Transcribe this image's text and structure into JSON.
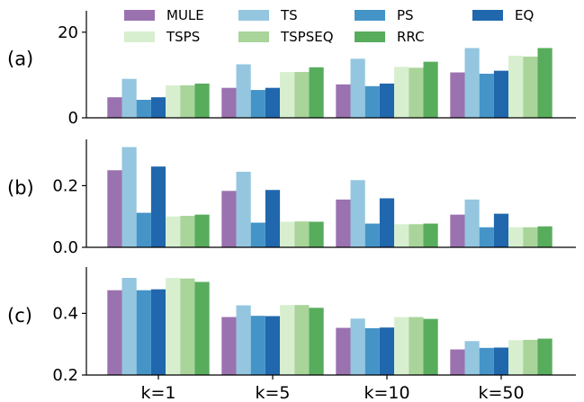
{
  "chart_data": {
    "type": "bar",
    "layout": "three vertically stacked panels sharing x categories",
    "categories": [
      "k=1",
      "k=5",
      "k=10",
      "k=50"
    ],
    "legend": {
      "placement": "top",
      "columns": 4,
      "entries": [
        "MULE",
        "TS",
        "PS",
        "EQ",
        "TSPS",
        "TSPSEQ",
        "RRC"
      ]
    },
    "colors": {
      "MULE": "#9b72b0",
      "TS": "#94c6e0",
      "PS": "#4594c8",
      "EQ": "#2167ad",
      "TSPS": "#d7efcf",
      "TSPSEQ": "#a9d49a",
      "RRC": "#58ad5d"
    },
    "series_order": [
      "MULE",
      "TS",
      "PS",
      "EQ",
      "TSPS",
      "TSPSEQ",
      "RRC"
    ],
    "panels": [
      {
        "label": "(a)",
        "ylim": [
          0,
          25
        ],
        "yticks": [
          0,
          20
        ],
        "ytick_labels": [
          "0",
          "20"
        ],
        "series": [
          {
            "name": "MULE",
            "values": [
              4.8,
              7.0,
              7.8,
              10.6
            ]
          },
          {
            "name": "TS",
            "values": [
              9.1,
              12.5,
              13.8,
              16.3
            ]
          },
          {
            "name": "PS",
            "values": [
              4.2,
              6.5,
              7.4,
              10.3
            ]
          },
          {
            "name": "EQ",
            "values": [
              4.8,
              7.0,
              8.0,
              11.0
            ]
          },
          {
            "name": "TSPS",
            "values": [
              7.6,
              10.7,
              11.9,
              14.5
            ]
          },
          {
            "name": "TSPSEQ",
            "values": [
              7.6,
              10.7,
              11.7,
              14.3
            ]
          },
          {
            "name": "RRC",
            "values": [
              8.0,
              11.8,
              13.1,
              16.3
            ]
          }
        ]
      },
      {
        "label": "(b)",
        "ylim": [
          0,
          0.35
        ],
        "yticks": [
          0.0,
          0.2
        ],
        "ytick_labels": [
          "0.0",
          "0.2"
        ],
        "series": [
          {
            "name": "MULE",
            "values": [
              0.25,
              0.183,
              0.155,
              0.106
            ]
          },
          {
            "name": "TS",
            "values": [
              0.325,
              0.245,
              0.218,
              0.155
            ]
          },
          {
            "name": "PS",
            "values": [
              0.112,
              0.08,
              0.077,
              0.065
            ]
          },
          {
            "name": "EQ",
            "values": [
              0.262,
              0.186,
              0.159,
              0.109
            ]
          },
          {
            "name": "TSPS",
            "values": [
              0.1,
              0.083,
              0.075,
              0.065
            ]
          },
          {
            "name": "TSPSEQ",
            "values": [
              0.102,
              0.084,
              0.075,
              0.065
            ]
          },
          {
            "name": "RRC",
            "values": [
              0.106,
              0.083,
              0.077,
              0.068
            ]
          }
        ]
      },
      {
        "label": "(c)",
        "ylim": [
          0.2,
          0.55
        ],
        "yticks": [
          0.2,
          0.4
        ],
        "ytick_labels": [
          "0.2",
          "0.4"
        ],
        "series": [
          {
            "name": "MULE",
            "values": [
              0.475,
              0.388,
              0.353,
              0.283
            ]
          },
          {
            "name": "TS",
            "values": [
              0.515,
              0.426,
              0.383,
              0.31
            ]
          },
          {
            "name": "PS",
            "values": [
              0.475,
              0.392,
              0.352,
              0.288
            ]
          },
          {
            "name": "EQ",
            "values": [
              0.478,
              0.391,
              0.354,
              0.289
            ]
          },
          {
            "name": "TSPS",
            "values": [
              0.515,
              0.427,
              0.388,
              0.313
            ]
          },
          {
            "name": "TSPSEQ",
            "values": [
              0.513,
              0.427,
              0.388,
              0.314
            ]
          },
          {
            "name": "RRC",
            "values": [
              0.502,
              0.418,
              0.382,
              0.318
            ]
          }
        ]
      }
    ]
  }
}
